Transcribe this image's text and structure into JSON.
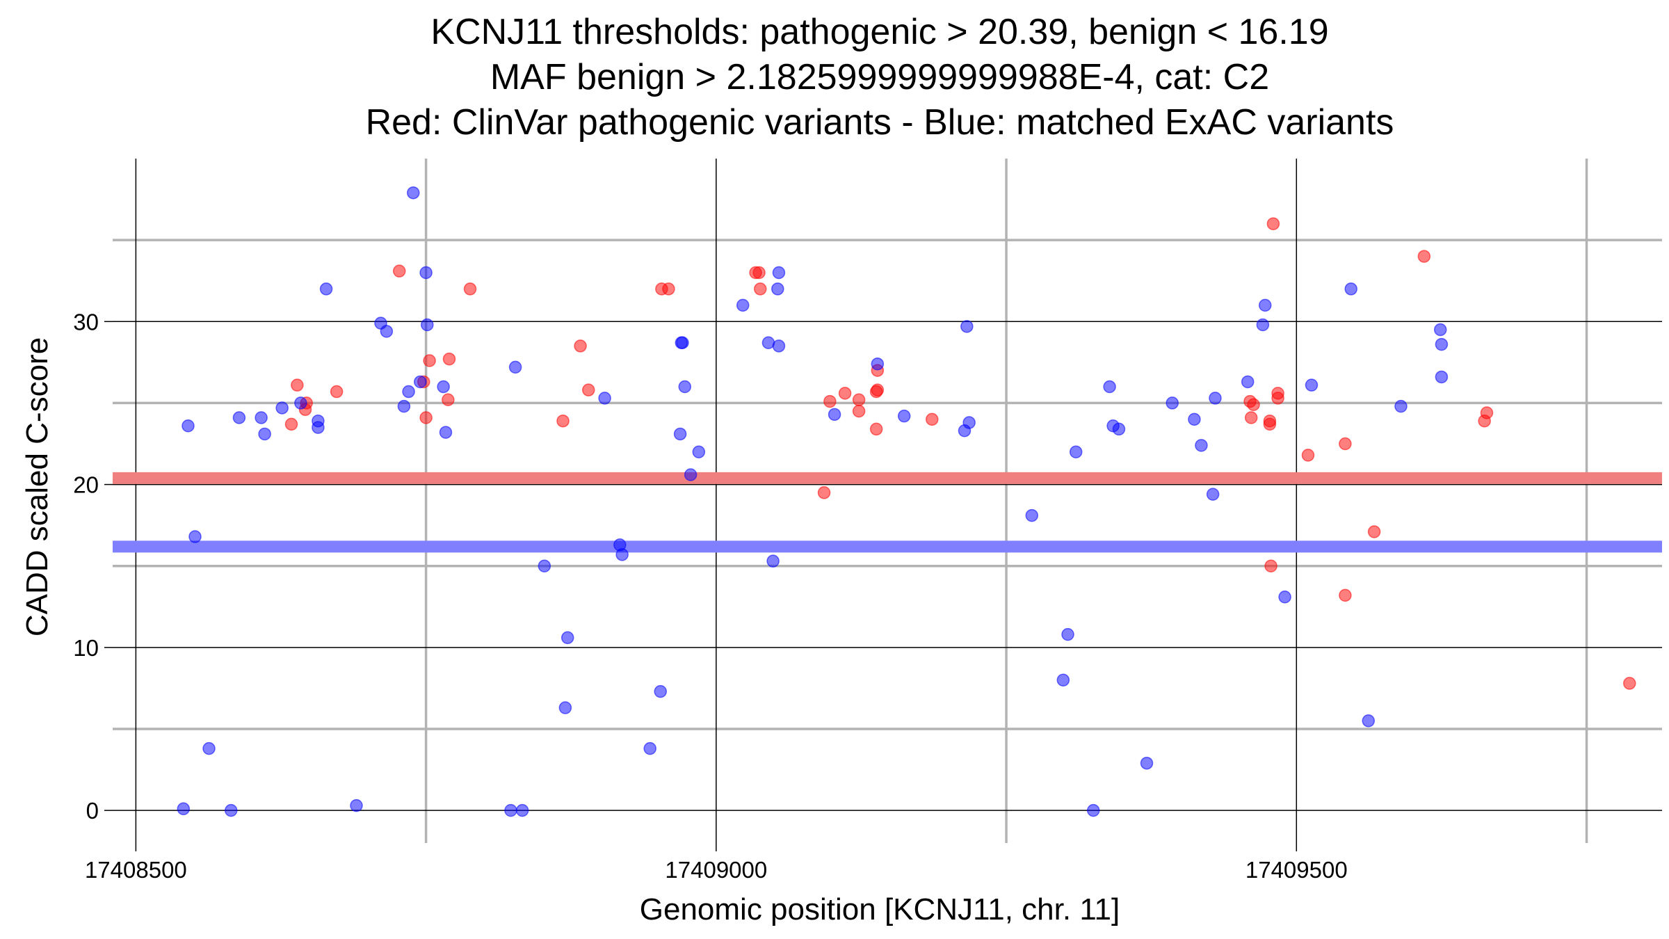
{
  "chart_data": {
    "type": "scatter",
    "title_lines": [
      "KCNJ11 thresholds: pathogenic > 20.39, benign < 16.19",
      "MAF benign > 2.1825999999999988E-4, cat: C2",
      "Red: ClinVar pathogenic variants - Blue: matched ExAC variants"
    ],
    "xlabel": "Genomic position [KCNJ11, chr. 11]",
    "ylabel": "CADD scaled C-score",
    "xlim": [
      17408480,
      17409815
    ],
    "ylim": [
      -2,
      40
    ],
    "x_ticks": [
      17408500,
      17409000,
      17409500
    ],
    "x_tick_labels": [
      "17408500",
      "17409000",
      "17409500"
    ],
    "y_ticks": [
      0,
      10,
      20,
      30
    ],
    "y_tick_labels": [
      "0",
      "10",
      "20",
      "30"
    ],
    "x_major_gridlines": [
      17408500,
      17409000,
      17409500
    ],
    "x_minor_gridlines": [
      17408750,
      17409250,
      17409750
    ],
    "y_major_gridlines": [
      0,
      10,
      20,
      30
    ],
    "y_minor_gridlines": [
      5,
      15,
      25,
      35
    ],
    "grid": true,
    "thresholds": [
      {
        "value": 20.39,
        "color": "#f08080"
      },
      {
        "value": 16.19,
        "color": "#8080ff"
      }
    ],
    "series": [
      {
        "color": "#ff0000",
        "points": [
          [
            17408639,
            26.1
          ],
          [
            17408634,
            23.7
          ],
          [
            17408646,
            24.6
          ],
          [
            17408647,
            25.0
          ],
          [
            17408673,
            25.7
          ],
          [
            17408727,
            33.1
          ],
          [
            17408748,
            26.3
          ],
          [
            17408750,
            24.1
          ],
          [
            17408753,
            27.6
          ],
          [
            17408770,
            27.7
          ],
          [
            17408769,
            25.2
          ],
          [
            17408788,
            32.0
          ],
          [
            17408868,
            23.9
          ],
          [
            17408883,
            28.5
          ],
          [
            17408890,
            25.8
          ],
          [
            17408953,
            32.0
          ],
          [
            17408959,
            32.0
          ],
          [
            17409037,
            33.0
          ],
          [
            17409038,
            32.0
          ],
          [
            17409034,
            33.0
          ],
          [
            17409093,
            19.5
          ],
          [
            17409098,
            25.1
          ],
          [
            17409111,
            25.6
          ],
          [
            17409123,
            25.2
          ],
          [
            17409123,
            24.5
          ],
          [
            17409138,
            25.7
          ],
          [
            17409139,
            25.8
          ],
          [
            17409139,
            27.0
          ],
          [
            17409138,
            23.4
          ],
          [
            17409186,
            24.0
          ],
          [
            17409460,
            25.1
          ],
          [
            17409463,
            24.9
          ],
          [
            17409461,
            24.1
          ],
          [
            17409477,
            23.7
          ],
          [
            17409477,
            23.9
          ],
          [
            17409478,
            15.0
          ],
          [
            17409480,
            36.0
          ],
          [
            17409484,
            25.3
          ],
          [
            17409484,
            25.6
          ],
          [
            17409510,
            21.8
          ],
          [
            17409542,
            13.2
          ],
          [
            17409542,
            22.5
          ],
          [
            17409567,
            17.1
          ],
          [
            17409610,
            34.0
          ],
          [
            17409662,
            23.9
          ],
          [
            17409664,
            24.4
          ],
          [
            17409787,
            7.8
          ]
        ]
      },
      {
        "color": "#0000ff",
        "points": [
          [
            17408541,
            0.1
          ],
          [
            17408545,
            23.6
          ],
          [
            17408551,
            16.8
          ],
          [
            17408563,
            3.8
          ],
          [
            17408582,
            0.0
          ],
          [
            17408589,
            24.1
          ],
          [
            17408608,
            24.1
          ],
          [
            17408611,
            23.1
          ],
          [
            17408626,
            24.7
          ],
          [
            17408642,
            25.0
          ],
          [
            17408657,
            23.9
          ],
          [
            17408657,
            23.5
          ],
          [
            17408664,
            32.0
          ],
          [
            17408690,
            0.3
          ],
          [
            17408711,
            29.9
          ],
          [
            17408716,
            29.4
          ],
          [
            17408731,
            24.8
          ],
          [
            17408735,
            25.7
          ],
          [
            17408739,
            37.9
          ],
          [
            17408745,
            26.3
          ],
          [
            17408751,
            29.8
          ],
          [
            17408750,
            33.0
          ],
          [
            17408765,
            26.0
          ],
          [
            17408767,
            23.2
          ],
          [
            17408823,
            0.0
          ],
          [
            17408827,
            27.2
          ],
          [
            17408833,
            0.0
          ],
          [
            17408852,
            15.0
          ],
          [
            17408870,
            6.3
          ],
          [
            17408872,
            10.6
          ],
          [
            17408904,
            25.3
          ],
          [
            17408917,
            16.3
          ],
          [
            17408919,
            15.7
          ],
          [
            17408943,
            3.8
          ],
          [
            17408952,
            7.3
          ],
          [
            17408970,
            28.7
          ],
          [
            17408969,
            23.1
          ],
          [
            17408973,
            26.0
          ],
          [
            17408978,
            20.6
          ],
          [
            17408985,
            22.0
          ],
          [
            17408971,
            28.7
          ],
          [
            17409023,
            31.0
          ],
          [
            17409045,
            28.7
          ],
          [
            17409049,
            15.3
          ],
          [
            17409054,
            33.0
          ],
          [
            17409053,
            32.0
          ],
          [
            17409054,
            28.5
          ],
          [
            17409102,
            24.3
          ],
          [
            17409139,
            27.4
          ],
          [
            17409162,
            24.2
          ],
          [
            17409214,
            23.3
          ],
          [
            17409216,
            29.7
          ],
          [
            17409218,
            23.8
          ],
          [
            17409272,
            18.1
          ],
          [
            17409299,
            8.0
          ],
          [
            17409303,
            10.8
          ],
          [
            17409310,
            22.0
          ],
          [
            17409325,
            0.0
          ],
          [
            17409339,
            26.0
          ],
          [
            17409342,
            23.6
          ],
          [
            17409347,
            23.4
          ],
          [
            17409371,
            2.9
          ],
          [
            17409393,
            25.0
          ],
          [
            17409412,
            24.0
          ],
          [
            17409418,
            22.4
          ],
          [
            17409428,
            19.4
          ],
          [
            17409430,
            25.3
          ],
          [
            17409458,
            26.3
          ],
          [
            17409471,
            29.8
          ],
          [
            17409473,
            31.0
          ],
          [
            17409490,
            13.1
          ],
          [
            17409513,
            26.1
          ],
          [
            17409547,
            32.0
          ],
          [
            17409562,
            5.5
          ],
          [
            17409590,
            24.8
          ],
          [
            17409624,
            29.5
          ],
          [
            17409625,
            28.6
          ],
          [
            17409625,
            26.6
          ]
        ]
      }
    ]
  }
}
